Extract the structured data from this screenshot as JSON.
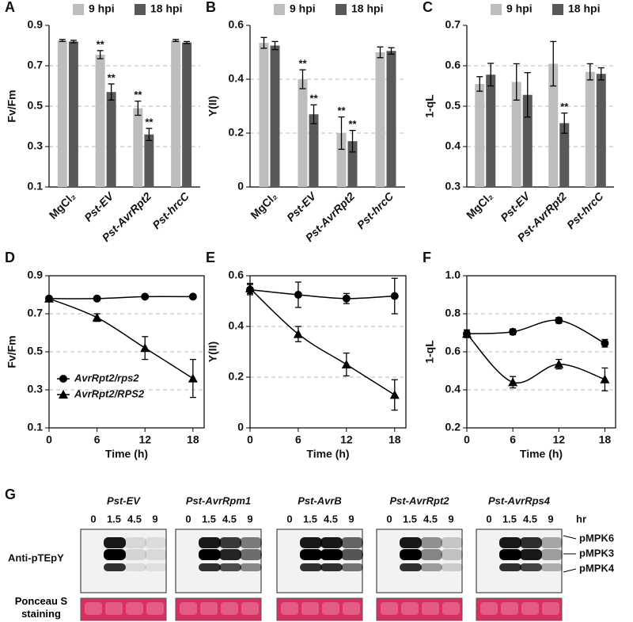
{
  "chart_data": [
    {
      "type": "bar",
      "label": "A",
      "ylabel": "Fv/Fm",
      "categories": [
        "MgCl₂",
        "Pst-EV",
        "Pst-AvrRpt2",
        "Pst-hrcC"
      ],
      "category_italic": [
        false,
        true,
        true,
        true
      ],
      "series": [
        {
          "name": "9 hpi",
          "color": "#bdbdbd",
          "values": [
            0.825,
            0.755,
            0.49,
            0.825
          ],
          "errors": [
            0.005,
            0.02,
            0.035,
            0.005
          ],
          "annotations": [
            null,
            "**",
            "**",
            null
          ]
        },
        {
          "name": "18 hpi",
          "color": "#595959",
          "values": [
            0.82,
            0.57,
            0.36,
            0.815
          ],
          "errors": [
            0.006,
            0.04,
            0.03,
            0.005
          ],
          "annotations": [
            null,
            "**",
            "**",
            null
          ]
        }
      ],
      "ylim": [
        0.1,
        0.9
      ],
      "yticks": [
        0.1,
        0.3,
        0.5,
        0.7,
        0.9
      ],
      "grid": true,
      "legend": "top"
    },
    {
      "type": "bar",
      "label": "B",
      "ylabel": "Y(II)",
      "categories": [
        "MgCl₂",
        "Pst-EV",
        "Pst-AvrRpt2",
        "Pst-hrcC"
      ],
      "category_italic": [
        false,
        true,
        true,
        true
      ],
      "series": [
        {
          "name": "9 hpi",
          "color": "#bdbdbd",
          "values": [
            0.535,
            0.4,
            0.2,
            0.5
          ],
          "errors": [
            0.02,
            0.035,
            0.06,
            0.02
          ],
          "annotations": [
            null,
            "**",
            "**",
            null
          ]
        },
        {
          "name": "18 hpi",
          "color": "#595959",
          "values": [
            0.525,
            0.27,
            0.17,
            0.505
          ],
          "errors": [
            0.015,
            0.035,
            0.04,
            0.012
          ],
          "annotations": [
            null,
            "**",
            "**",
            null
          ]
        }
      ],
      "ylim": [
        0,
        0.6
      ],
      "yticks": [
        0,
        0.2,
        0.4,
        0.6
      ],
      "grid": true,
      "legend": "top"
    },
    {
      "type": "bar",
      "label": "C",
      "ylabel": "1-qL",
      "categories": [
        "MgCl₂",
        "Pst-EV",
        "Pst-AvrRpt2",
        "Pst-hrcC"
      ],
      "category_italic": [
        false,
        true,
        true,
        true
      ],
      "series": [
        {
          "name": "9 hpi",
          "color": "#bdbdbd",
          "values": [
            0.555,
            0.56,
            0.605,
            0.585
          ],
          "errors": [
            0.018,
            0.045,
            0.055,
            0.02
          ],
          "annotations": [
            null,
            null,
            null,
            null
          ]
        },
        {
          "name": "18 hpi",
          "color": "#595959",
          "values": [
            0.578,
            0.528,
            0.458,
            0.58
          ],
          "errors": [
            0.028,
            0.055,
            0.025,
            0.015
          ],
          "annotations": [
            null,
            null,
            "**",
            null
          ]
        }
      ],
      "ylim": [
        0.3,
        0.7
      ],
      "yticks": [
        0.3,
        0.4,
        0.5,
        0.6,
        0.7
      ],
      "grid": true,
      "legend": "top"
    },
    {
      "type": "line",
      "label": "D",
      "ylabel": "Fv/Fm",
      "xlabel": "Time (h)",
      "x": [
        0,
        6,
        12,
        18
      ],
      "xlim": [
        0,
        19.4
      ],
      "xticks": [
        0,
        6,
        12,
        18
      ],
      "series": [
        {
          "name": "AvrRpt2/rps2",
          "color": "#000000",
          "marker": "circle",
          "values": [
            0.78,
            0.78,
            0.79,
            0.79
          ],
          "errors": [
            0.01,
            0.01,
            0.008,
            0.008
          ]
        },
        {
          "name": "AvrRpt2/RPS2",
          "color": "#000000",
          "marker": "triangle",
          "values": [
            0.78,
            0.68,
            0.52,
            0.36
          ],
          "errors": [
            0.01,
            0.02,
            0.06,
            0.1
          ]
        }
      ],
      "ylim": [
        0.1,
        0.9
      ],
      "yticks": [
        0.1,
        0.3,
        0.5,
        0.7,
        0.9
      ],
      "grid": true,
      "legend": "lower left"
    },
    {
      "type": "line",
      "label": "E",
      "ylabel": "Y(II)",
      "xlabel": "Time (h)",
      "x": [
        0,
        6,
        12,
        18
      ],
      "xlim": [
        0,
        19.4
      ],
      "xticks": [
        0,
        6,
        12,
        18
      ],
      "series": [
        {
          "color": "#000000",
          "marker": "circle",
          "values": [
            0.545,
            0.525,
            0.51,
            0.52
          ],
          "errors": [
            0.02,
            0.05,
            0.02,
            0.07
          ]
        },
        {
          "color": "#000000",
          "marker": "triangle",
          "values": [
            0.55,
            0.37,
            0.25,
            0.13
          ],
          "errors": [
            0.02,
            0.03,
            0.045,
            0.06
          ]
        }
      ],
      "ylim": [
        0,
        0.6
      ],
      "yticks": [
        0,
        0.2,
        0.4,
        0.6
      ],
      "grid": true
    },
    {
      "type": "line",
      "label": "F",
      "ylabel": "1-qL",
      "xlabel": "Time (h)",
      "x": [
        0,
        6,
        12,
        18
      ],
      "xlim": [
        0,
        19.4
      ],
      "xticks": [
        0,
        6,
        12,
        18
      ],
      "series": [
        {
          "color": "#000000",
          "marker": "circle",
          "values": [
            0.695,
            0.705,
            0.765,
            0.645
          ],
          "errors": [
            0.02,
            0.015,
            0.015,
            0.02
          ]
        },
        {
          "color": "#000000",
          "marker": "triangle",
          "values": [
            0.695,
            0.44,
            0.535,
            0.455
          ],
          "errors": [
            0.02,
            0.03,
            0.025,
            0.06
          ]
        }
      ],
      "ylim": [
        0.2,
        1.0
      ],
      "yticks": [
        0.2,
        0.4,
        0.6,
        0.8,
        {
          "value": 1.0,
          "label": "1.0"
        }
      ],
      "grid": true
    }
  ],
  "blot": {
    "label": "G",
    "strains": [
      "Pst-EV",
      "Pst-AvrRpm1",
      "Pst-AvrB",
      "Pst-AvrRpt2",
      "Pst-AvrRps4"
    ],
    "timepoints": [
      "0",
      "1.5",
      "4.5",
      "9"
    ],
    "time_unit": "hr",
    "rows": [
      "Anti-pTEpY",
      "Ponceau S staining"
    ],
    "bands": [
      "pMPK6",
      "pMPK3",
      "pMPK4"
    ]
  }
}
